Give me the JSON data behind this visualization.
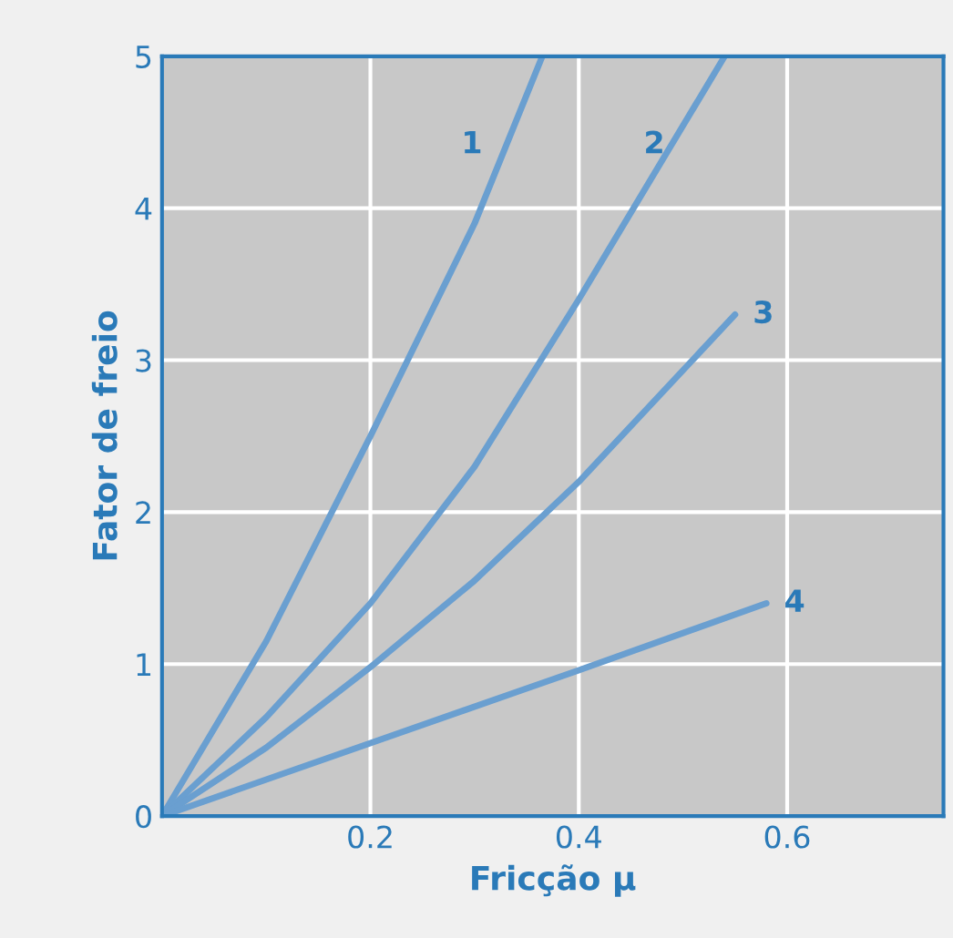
{
  "chart_data": {
    "type": "line",
    "xlabel": "Fricção μ",
    "ylabel": "Fator de freio",
    "xlim": [
      0,
      0.75
    ],
    "ylim": [
      0,
      5
    ],
    "xticks": [
      0.2,
      0.4,
      0.6
    ],
    "yticks": [
      0,
      1,
      2,
      3,
      4,
      5
    ],
    "grid": true,
    "marker": "none",
    "line_style": "solid",
    "series": [
      {
        "name": "1",
        "color": "#6a9fd0",
        "x": [
          0,
          0.1,
          0.2,
          0.3,
          0.365
        ],
        "values": [
          0,
          1.15,
          2.5,
          3.9,
          5
        ]
      },
      {
        "name": "2",
        "color": "#6a9fd0",
        "x": [
          0,
          0.1,
          0.2,
          0.3,
          0.4,
          0.54
        ],
        "values": [
          0,
          0.65,
          1.4,
          2.3,
          3.4,
          5
        ]
      },
      {
        "name": "3",
        "color": "#6a9fd0",
        "x": [
          0,
          0.1,
          0.2,
          0.3,
          0.4,
          0.55
        ],
        "values": [
          0,
          0.45,
          0.98,
          1.55,
          2.2,
          3.3
        ]
      },
      {
        "name": "4",
        "color": "#6a9fd0",
        "x": [
          0,
          0.2,
          0.4,
          0.58
        ],
        "values": [
          0,
          0.48,
          0.96,
          1.4
        ]
      }
    ]
  }
}
